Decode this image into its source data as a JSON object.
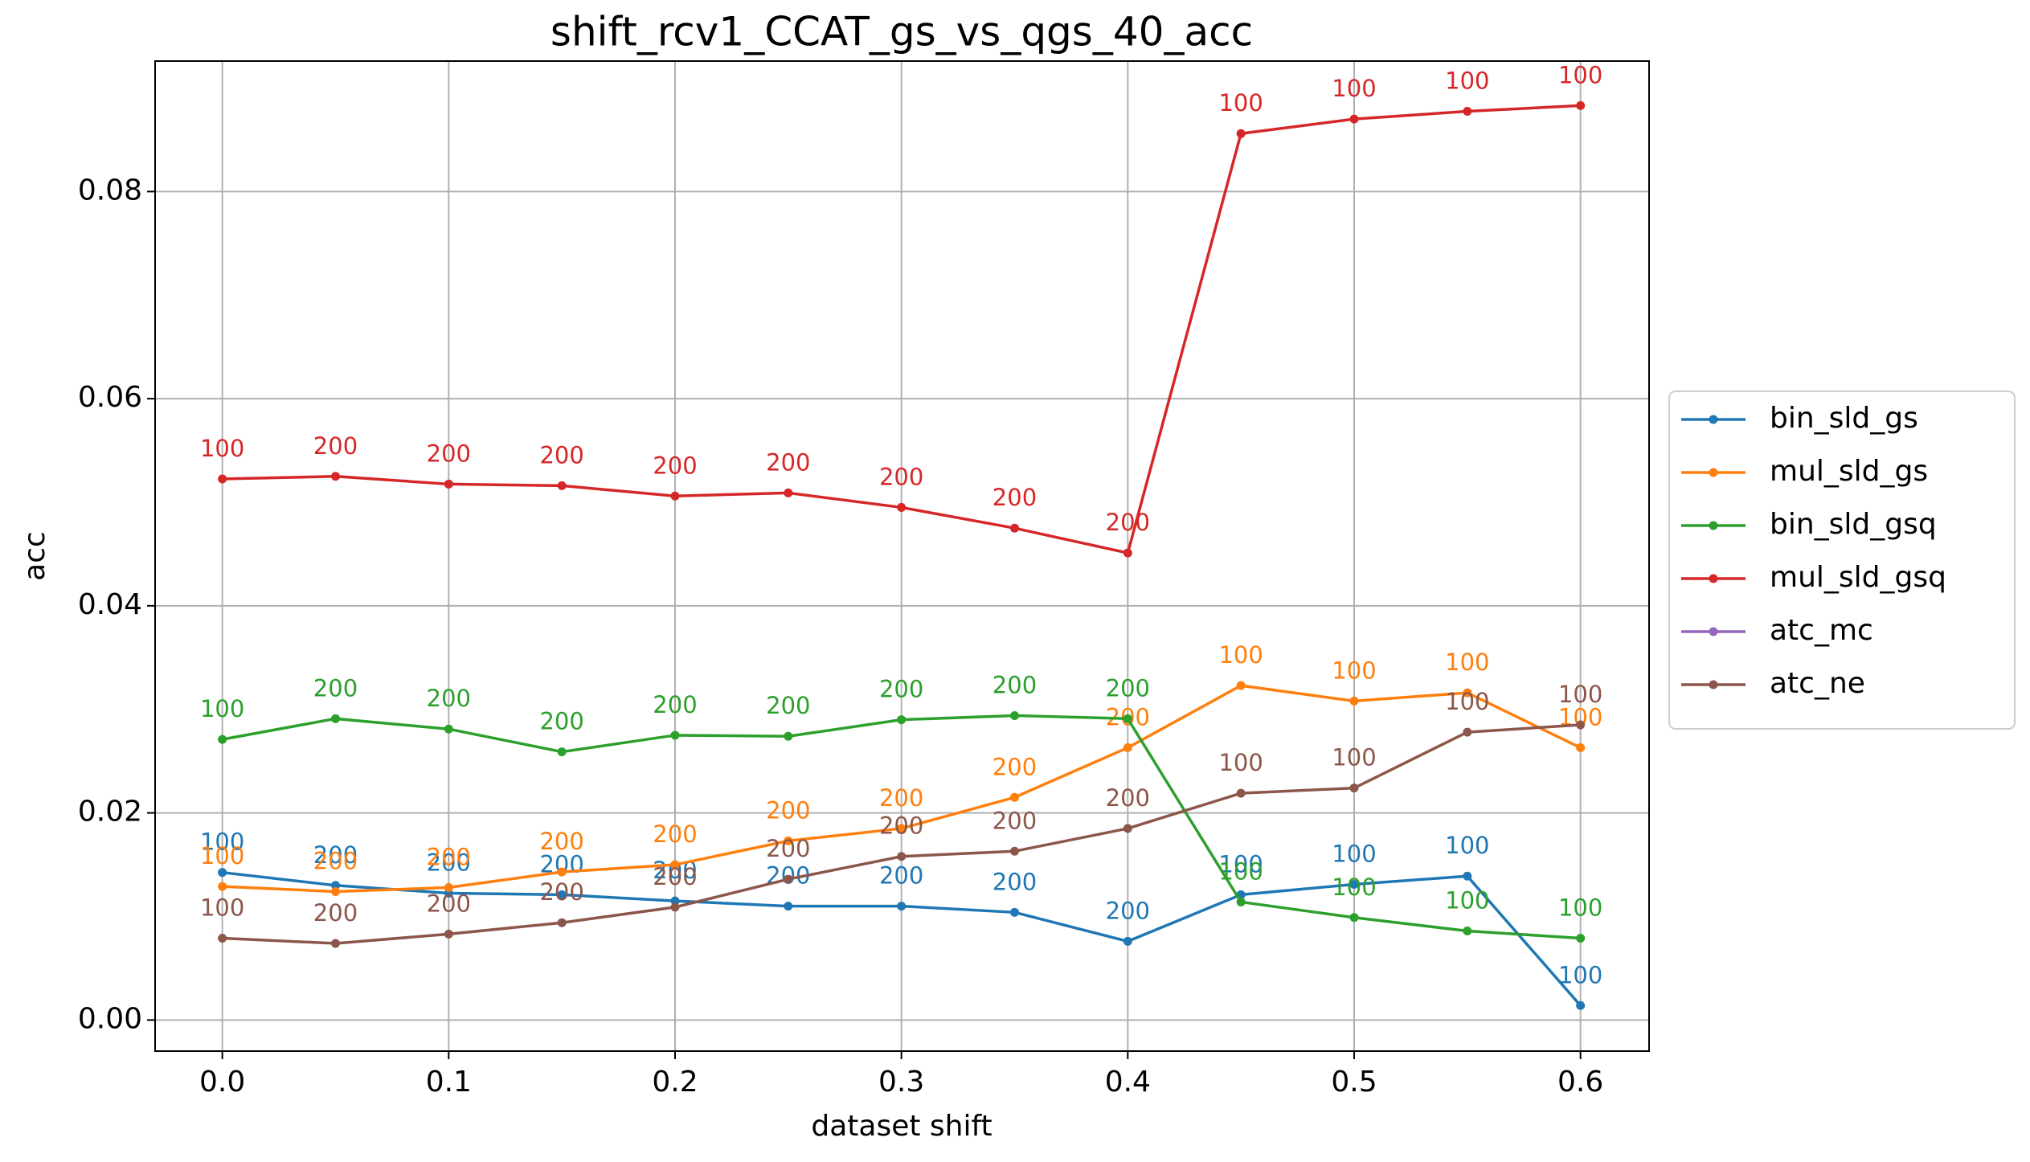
{
  "chart_data": {
    "type": "line",
    "title": "shift_rcv1_CCAT_gs_vs_qgs_40_acc",
    "x_label": "dataset shift",
    "y_label": "acc",
    "x": [
      0,
      0.05,
      0.1,
      0.15,
      0.2,
      0.25,
      0.3,
      0.35,
      0.4,
      0.45,
      0.5,
      0.55,
      0.6
    ],
    "xlim": [
      -0.0297,
      0.6303
    ],
    "xticks": [
      {
        "value": 0,
        "label": "0.0"
      },
      {
        "value": 0.1,
        "label": "0.1"
      },
      {
        "value": 0.2,
        "label": "0.2"
      },
      {
        "value": 0.3,
        "label": "0.3"
      },
      {
        "value": 0.4,
        "label": "0.4"
      },
      {
        "value": 0.5,
        "label": "0.5"
      },
      {
        "value": 0.6,
        "label": "0.6"
      }
    ],
    "ylim": [
      -0.003,
      0.0926
    ],
    "yticks": [
      {
        "value": 0,
        "label": "0.00"
      },
      {
        "value": 0.02,
        "label": "0.02"
      },
      {
        "value": 0.04,
        "label": "0.04"
      },
      {
        "value": 0.06,
        "label": "0.06"
      },
      {
        "value": 0.08,
        "label": "0.08"
      }
    ],
    "grid": true,
    "legend": "outside right",
    "series": [
      {
        "name": "bin_sld_gs",
        "color": "#1f77b4",
        "values": [
          0.01425,
          0.013,
          0.01225,
          0.0121,
          0.0115,
          0.011,
          0.011,
          0.0104,
          0.0076,
          0.0121,
          0.0131,
          0.0139,
          0.0014
        ],
        "point_labels": [
          "100",
          "200",
          "200",
          "200",
          "200",
          "200",
          "200",
          "200",
          "200",
          "100",
          "100",
          "100",
          "100"
        ]
      },
      {
        "name": "mul_sld_gs",
        "color": "#ff7f0e",
        "values": [
          0.0129,
          0.0124,
          0.0128,
          0.0143,
          0.015,
          0.0173,
          0.0185,
          0.0215,
          0.0263,
          0.0323,
          0.0308,
          0.0316,
          0.0263
        ],
        "point_labels": [
          "100",
          "200",
          "200",
          "200",
          "200",
          "200",
          "200",
          "200",
          "200",
          "100",
          "100",
          "100",
          "100"
        ]
      },
      {
        "name": "bin_sld_gsq",
        "color": "#2ca02c",
        "values": [
          0.0271,
          0.0291,
          0.0281,
          0.0259,
          0.0275,
          0.0274,
          0.029,
          0.0294,
          0.0291,
          0.0114,
          0.0099,
          0.0086,
          0.0079
        ],
        "point_labels": [
          "100",
          "200",
          "200",
          "200",
          "200",
          "200",
          "200",
          "200",
          "200",
          "100",
          "100",
          "100",
          "100"
        ]
      },
      {
        "name": "mul_sld_gsq",
        "color": "#d62728",
        "values": [
          0.05225,
          0.0525,
          0.05175,
          0.0516,
          0.0506,
          0.0509,
          0.0495,
          0.0475,
          0.0451,
          0.0856,
          0.087,
          0.08775,
          0.0883
        ],
        "point_labels": [
          "100",
          "200",
          "200",
          "200",
          "200",
          "200",
          "200",
          "200",
          "200",
          "100",
          "100",
          "100",
          "100"
        ]
      },
      {
        "name": "atc_mc",
        "color": "#9467bd",
        "values": [
          null,
          null,
          null,
          null,
          null,
          null,
          null,
          null,
          null,
          null,
          null,
          null,
          null
        ]
      },
      {
        "name": "atc_ne",
        "color": "#8c564b",
        "values": [
          0.0079,
          0.0074,
          0.0083,
          0.0094,
          0.0109,
          0.0136,
          0.0158,
          0.0163,
          0.0185,
          0.0219,
          0.0224,
          0.0278,
          0.0285
        ],
        "point_labels": [
          "100",
          "200",
          "200",
          "200",
          "200",
          "200",
          "200",
          "200",
          "200",
          "100",
          "100",
          "100",
          "100"
        ]
      }
    ]
  }
}
